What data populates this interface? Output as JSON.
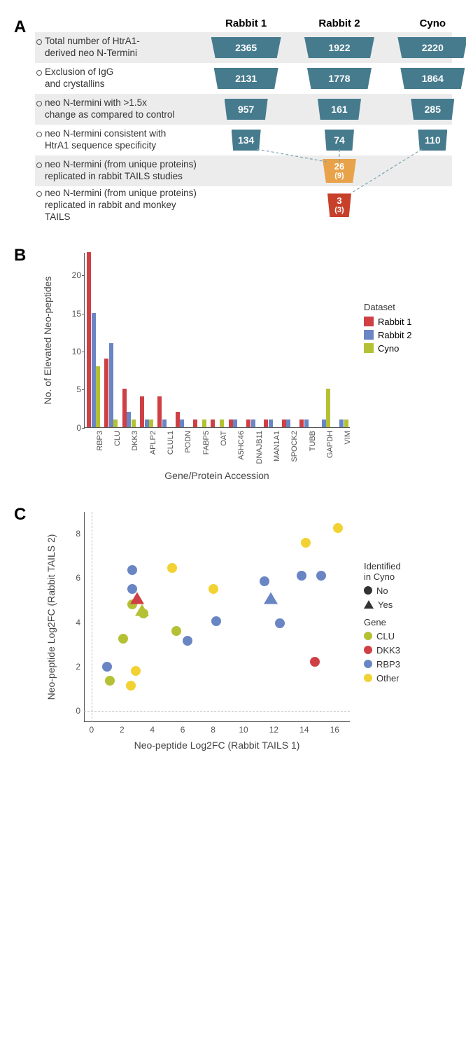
{
  "colors": {
    "teal": "#467b8e",
    "orange": "#e8a24a",
    "red": "#c8402a",
    "bar_red": "#cf4044",
    "bar_blue": "#6a85c4",
    "bar_olive": "#b4c135",
    "sc_olive": "#b4c135",
    "sc_red": "#cf4044",
    "sc_blue": "#6a85c4",
    "sc_yellow": "#f2d233"
  },
  "panelA": {
    "label": "A",
    "columns": [
      "Rabbit 1",
      "Rabbit 2",
      "Cyno"
    ],
    "rows": [
      {
        "label": "Total number of HtrA1-\nderived neo N-Termini",
        "values": [
          "2365",
          "1922",
          "2220"
        ],
        "widths": [
          100,
          100,
          100
        ],
        "shade": true
      },
      {
        "label": "Exclusion of IgG\nand crystallins",
        "values": [
          "2131",
          "1778",
          "1864"
        ],
        "widths": [
          92,
          92,
          92
        ],
        "shade": false
      },
      {
        "label": "neo N-termini with >1.5x\nchange as compared to control",
        "values": [
          "957",
          "161",
          "285"
        ],
        "widths": [
          62,
          62,
          62
        ],
        "shade": true
      },
      {
        "label": "neo N-termini consistent with\nHtrA1 sequence specificity",
        "values": [
          "134",
          "74",
          "110"
        ],
        "widths": [
          42,
          42,
          42
        ],
        "shade": false
      }
    ],
    "merged": [
      {
        "label": "neo N-termini (from unique proteins)\nreplicated in rabbit TAILS studies",
        "value": "26",
        "sub": "(9)",
        "width": 48,
        "color": "orange",
        "shade": true
      },
      {
        "label": "neo N-termini (from unique proteins)\nreplicated in rabbit and monkey TAILS",
        "value": "3",
        "sub": "(3)",
        "width": 34,
        "color": "red",
        "shade": false
      }
    ]
  },
  "panelB": {
    "label": "B",
    "ylabel": "No. of Elevated Neo-peptides",
    "xlabel": "Gene/Protein Accession",
    "ylim": [
      0,
      23
    ],
    "yticks": [
      0,
      5,
      10,
      15,
      20
    ],
    "legend_title": "Dataset",
    "legend": [
      {
        "label": "Rabbit 1",
        "color": "bar_red"
      },
      {
        "label": "Rabbit 2",
        "color": "bar_blue"
      },
      {
        "label": "Cyno",
        "color": "bar_olive"
      }
    ],
    "categories": [
      "RBP3",
      "CLU",
      "DKK3",
      "APLP2",
      "CLUL1",
      "PODN",
      "FABP5",
      "OAT",
      "A5HC46",
      "DNAJB11",
      "MAN1A1",
      "SPOCK2",
      "TUBB",
      "GAPDH",
      "VIM"
    ],
    "series": {
      "Rabbit 1": [
        23,
        9,
        5,
        4,
        4,
        2,
        1,
        1,
        1,
        1,
        1,
        1,
        1,
        0,
        0
      ],
      "Rabbit 2": [
        15,
        11,
        2,
        1,
        1,
        1,
        0,
        0,
        1,
        1,
        1,
        1,
        1,
        1,
        1
      ],
      "Cyno": [
        8,
        1,
        1,
        1,
        0,
        0,
        1,
        1,
        0,
        0,
        0,
        0,
        0,
        5,
        1
      ]
    }
  },
  "panelC": {
    "label": "C",
    "xlabel": "Neo-peptide Log2FC (Rabbit TAILS 1)",
    "ylabel": "Neo-peptide Log2FC (Rabbit TAILS 2)",
    "xlim": [
      -0.5,
      17
    ],
    "ylim": [
      -0.5,
      9
    ],
    "xticks": [
      0,
      2,
      4,
      6,
      8,
      10,
      12,
      14,
      16
    ],
    "yticks": [
      0,
      2,
      4,
      6,
      8
    ],
    "ref_x": 0,
    "ref_y": 0,
    "shape_legend_title": "Identified\nin Cyno",
    "shape_legend": [
      {
        "label": "No",
        "shape": "circle"
      },
      {
        "label": "Yes",
        "shape": "triangle"
      }
    ],
    "gene_legend_title": "Gene",
    "gene_legend": [
      {
        "label": "CLU",
        "color": "sc_olive"
      },
      {
        "label": "DKK3",
        "color": "sc_red"
      },
      {
        "label": "RBP3",
        "color": "sc_blue"
      },
      {
        "label": "Other",
        "color": "sc_yellow"
      }
    ],
    "points": [
      {
        "x": 1.0,
        "y": 2.0,
        "gene": "RBP3",
        "shape": "circle"
      },
      {
        "x": 1.2,
        "y": 1.35,
        "gene": "CLU",
        "shape": "circle"
      },
      {
        "x": 2.1,
        "y": 3.25,
        "gene": "CLU",
        "shape": "circle"
      },
      {
        "x": 2.6,
        "y": 1.15,
        "gene": "Other",
        "shape": "circle"
      },
      {
        "x": 2.7,
        "y": 6.35,
        "gene": "RBP3",
        "shape": "circle"
      },
      {
        "x": 2.7,
        "y": 5.5,
        "gene": "RBP3",
        "shape": "circle"
      },
      {
        "x": 2.7,
        "y": 4.8,
        "gene": "CLU",
        "shape": "circle"
      },
      {
        "x": 2.9,
        "y": 1.8,
        "gene": "Other",
        "shape": "circle"
      },
      {
        "x": 3.0,
        "y": 5.1,
        "gene": "DKK3",
        "shape": "triangle"
      },
      {
        "x": 3.3,
        "y": 4.55,
        "gene": "CLU",
        "shape": "triangle"
      },
      {
        "x": 3.4,
        "y": 4.4,
        "gene": "CLU",
        "shape": "circle"
      },
      {
        "x": 5.3,
        "y": 6.45,
        "gene": "Other",
        "shape": "circle"
      },
      {
        "x": 5.6,
        "y": 3.6,
        "gene": "CLU",
        "shape": "circle"
      },
      {
        "x": 6.3,
        "y": 3.15,
        "gene": "RBP3",
        "shape": "circle"
      },
      {
        "x": 8.0,
        "y": 5.5,
        "gene": "Other",
        "shape": "circle"
      },
      {
        "x": 8.2,
        "y": 4.05,
        "gene": "RBP3",
        "shape": "circle"
      },
      {
        "x": 11.4,
        "y": 5.85,
        "gene": "RBP3",
        "shape": "circle"
      },
      {
        "x": 11.8,
        "y": 5.1,
        "gene": "RBP3",
        "shape": "triangle"
      },
      {
        "x": 12.4,
        "y": 3.95,
        "gene": "RBP3",
        "shape": "circle"
      },
      {
        "x": 13.8,
        "y": 6.1,
        "gene": "RBP3",
        "shape": "circle"
      },
      {
        "x": 14.1,
        "y": 7.6,
        "gene": "Other",
        "shape": "circle"
      },
      {
        "x": 14.7,
        "y": 2.2,
        "gene": "DKK3",
        "shape": "circle"
      },
      {
        "x": 15.1,
        "y": 6.1,
        "gene": "RBP3",
        "shape": "circle"
      },
      {
        "x": 16.2,
        "y": 8.25,
        "gene": "Other",
        "shape": "circle"
      }
    ]
  }
}
